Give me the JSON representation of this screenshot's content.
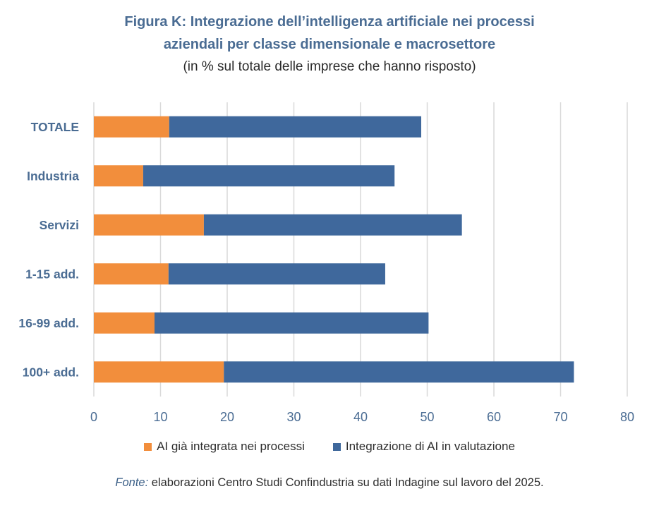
{
  "title_line1": "Figura K: Integrazione dell’intelligenza artificiale nei processi",
  "title_line2": "aziendali per classe dimensionale e macrosettore",
  "subtitle": "(in % sul totale delle imprese che hanno risposto)",
  "source_label": "Fonte:",
  "source_text": " elaborazioni Centro Studi Confindustria su dati Indagine sul lavoro del 2025.",
  "colors": {
    "integrated": "#f28e3c",
    "evaluating": "#3f689c",
    "grid": "#d9d9d9",
    "axis_text": "#4a6c93"
  },
  "chart_data": {
    "type": "bar",
    "orientation": "horizontal",
    "stacked": true,
    "categories": [
      "TOTALE",
      "Industria",
      "Servizi",
      "1-15 add.",
      "16-99 add.",
      "100+ add."
    ],
    "series": [
      {
        "name": "AI già integrata nei processi",
        "values": [
          11.3,
          7.4,
          16.5,
          11.2,
          9.1,
          19.5
        ]
      },
      {
        "name": "Integrazione di AI in valutazione",
        "values": [
          37.8,
          37.7,
          38.7,
          32.5,
          41.1,
          52.5
        ]
      }
    ],
    "xlim": [
      0,
      80
    ],
    "xticks": [
      0,
      10,
      20,
      30,
      40,
      50,
      60,
      70,
      80
    ],
    "grid": true,
    "legend_position": "bottom"
  }
}
